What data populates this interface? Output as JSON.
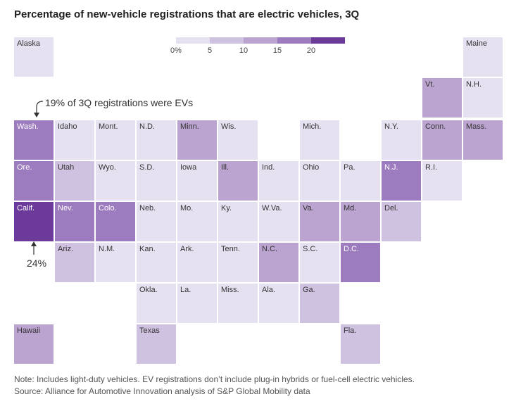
{
  "title": "Percentage of new-vehicle registrations that are electric vehicles, 3Q",
  "legend": {
    "ticks": [
      "0%",
      "5",
      "10",
      "15",
      "20"
    ],
    "bins": [
      {
        "min": 0,
        "max": 5,
        "color": "#e6e1f1"
      },
      {
        "min": 5,
        "max": 10,
        "color": "#cfc2e0"
      },
      {
        "min": 10,
        "max": 15,
        "color": "#bba4d0"
      },
      {
        "min": 15,
        "max": 20,
        "color": "#9c7bbe"
      },
      {
        "min": 20,
        "max": 25,
        "color": "#6c3a9b"
      }
    ]
  },
  "states": [
    {
      "label": "Alaska",
      "row": 0,
      "col": 0,
      "bin": 0
    },
    {
      "label": "Maine",
      "row": 0,
      "col": 11,
      "bin": 0
    },
    {
      "label": "Vt.",
      "row": 1,
      "col": 10,
      "bin": 2
    },
    {
      "label": "N.H.",
      "row": 1,
      "col": 11,
      "bin": 0
    },
    {
      "label": "Wash.",
      "row": 2,
      "col": 0,
      "bin": 3
    },
    {
      "label": "Idaho",
      "row": 2,
      "col": 1,
      "bin": 0
    },
    {
      "label": "Mont.",
      "row": 2,
      "col": 2,
      "bin": 0
    },
    {
      "label": "N.D.",
      "row": 2,
      "col": 3,
      "bin": 0
    },
    {
      "label": "Minn.",
      "row": 2,
      "col": 4,
      "bin": 2
    },
    {
      "label": "Wis.",
      "row": 2,
      "col": 5,
      "bin": 0
    },
    {
      "label": "Mich.",
      "row": 2,
      "col": 7,
      "bin": 0
    },
    {
      "label": "N.Y.",
      "row": 2,
      "col": 9,
      "bin": 0
    },
    {
      "label": "Conn.",
      "row": 2,
      "col": 10,
      "bin": 2
    },
    {
      "label": "Mass.",
      "row": 2,
      "col": 11,
      "bin": 2
    },
    {
      "label": "Ore.",
      "row": 3,
      "col": 0,
      "bin": 3
    },
    {
      "label": "Utah",
      "row": 3,
      "col": 1,
      "bin": 1
    },
    {
      "label": "Wyo.",
      "row": 3,
      "col": 2,
      "bin": 0
    },
    {
      "label": "S.D.",
      "row": 3,
      "col": 3,
      "bin": 0
    },
    {
      "label": "Iowa",
      "row": 3,
      "col": 4,
      "bin": 0
    },
    {
      "label": "Ill.",
      "row": 3,
      "col": 5,
      "bin": 2
    },
    {
      "label": "Ind.",
      "row": 3,
      "col": 6,
      "bin": 0
    },
    {
      "label": "Ohio",
      "row": 3,
      "col": 7,
      "bin": 0
    },
    {
      "label": "Pa.",
      "row": 3,
      "col": 8,
      "bin": 0
    },
    {
      "label": "N.J.",
      "row": 3,
      "col": 9,
      "bin": 3
    },
    {
      "label": "R.I.",
      "row": 3,
      "col": 10,
      "bin": 0
    },
    {
      "label": "Calif.",
      "row": 4,
      "col": 0,
      "bin": 4
    },
    {
      "label": "Nev.",
      "row": 4,
      "col": 1,
      "bin": 3
    },
    {
      "label": "Colo.",
      "row": 4,
      "col": 2,
      "bin": 3
    },
    {
      "label": "Neb.",
      "row": 4,
      "col": 3,
      "bin": 0
    },
    {
      "label": "Mo.",
      "row": 4,
      "col": 4,
      "bin": 0
    },
    {
      "label": "Ky.",
      "row": 4,
      "col": 5,
      "bin": 0
    },
    {
      "label": "W.Va.",
      "row": 4,
      "col": 6,
      "bin": 0
    },
    {
      "label": "Va.",
      "row": 4,
      "col": 7,
      "bin": 2
    },
    {
      "label": "Md.",
      "row": 4,
      "col": 8,
      "bin": 2
    },
    {
      "label": "Del.",
      "row": 4,
      "col": 9,
      "bin": 1
    },
    {
      "label": "Ariz.",
      "row": 5,
      "col": 1,
      "bin": 1
    },
    {
      "label": "N.M.",
      "row": 5,
      "col": 2,
      "bin": 0
    },
    {
      "label": "Kan.",
      "row": 5,
      "col": 3,
      "bin": 0
    },
    {
      "label": "Ark.",
      "row": 5,
      "col": 4,
      "bin": 0
    },
    {
      "label": "Tenn.",
      "row": 5,
      "col": 5,
      "bin": 0
    },
    {
      "label": "N.C.",
      "row": 5,
      "col": 6,
      "bin": 2
    },
    {
      "label": "S.C.",
      "row": 5,
      "col": 7,
      "bin": 0
    },
    {
      "label": "D.C.",
      "row": 5,
      "col": 8,
      "bin": 3
    },
    {
      "label": "Okla.",
      "row": 6,
      "col": 3,
      "bin": 0
    },
    {
      "label": "La.",
      "row": 6,
      "col": 4,
      "bin": 0
    },
    {
      "label": "Miss.",
      "row": 6,
      "col": 5,
      "bin": 0
    },
    {
      "label": "Ala.",
      "row": 6,
      "col": 6,
      "bin": 0
    },
    {
      "label": "Ga.",
      "row": 6,
      "col": 7,
      "bin": 1
    },
    {
      "label": "Hawaii",
      "row": 7,
      "col": 0,
      "bin": 2
    },
    {
      "label": "Texas",
      "row": 7,
      "col": 3,
      "bin": 1
    },
    {
      "label": "Fla.",
      "row": 7,
      "col": 8,
      "bin": 1
    }
  ],
  "annotations": {
    "wash": "19% of 3Q registrations were EVs",
    "calif": "24%"
  },
  "notes": {
    "note": "Note: Includes light-duty vehicles. EV registrations don’t include plug-in hybrids or fuel-cell electric vehicles.",
    "source": "Source: Alliance for Automotive Innovation analysis of S&P Global Mobility data"
  }
}
